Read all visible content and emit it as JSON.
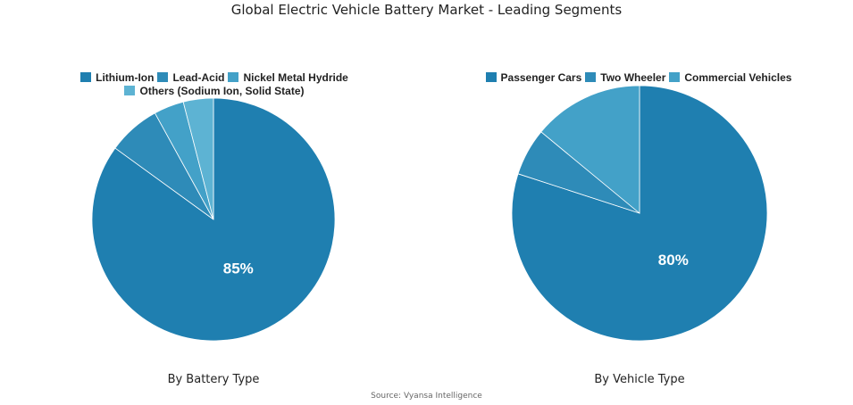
{
  "title": "Global Electric Vehicle Battery Market - Leading Segments",
  "source": "Source: Vyansa Intelligence",
  "chart_data": [
    {
      "type": "pie",
      "subtitle": "By Battery Type",
      "labels": [
        "Lithium-Ion",
        "Lead-Acid",
        "Nickel Metal Hydride",
        "Others (Sodium Ion, Solid State)"
      ],
      "values": [
        85,
        7,
        4,
        4
      ],
      "colors": [
        "#1f7fb0",
        "#2e8bb8",
        "#43a1c8",
        "#5db3d3"
      ],
      "data_labels": [
        "85%",
        "",
        "",
        ""
      ],
      "legend": "top"
    },
    {
      "type": "pie",
      "subtitle": "By Vehicle Type",
      "labels": [
        "Passenger Cars",
        "Two Wheeler",
        "Commercial Vehicles"
      ],
      "values": [
        80,
        6,
        14
      ],
      "colors": [
        "#1f7fb0",
        "#2e8bb8",
        "#43a1c8"
      ],
      "data_labels": [
        "80%",
        "",
        ""
      ],
      "legend": "top"
    }
  ]
}
